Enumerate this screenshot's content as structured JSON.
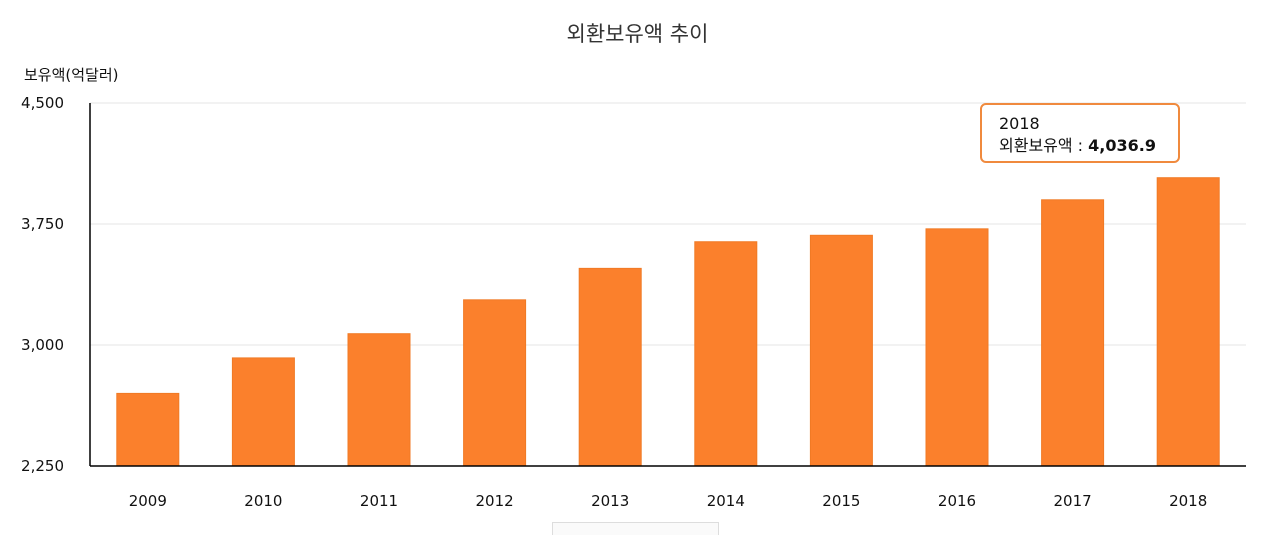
{
  "chart_data": {
    "type": "bar",
    "title": "외환보유액 추이",
    "ylabel": "보유액(억달러)",
    "xlabel": "",
    "categories": [
      "2009",
      "2010",
      "2011",
      "2012",
      "2013",
      "2014",
      "2015",
      "2016",
      "2017",
      "2018"
    ],
    "values": [
      2700,
      2920,
      3070,
      3280,
      3475,
      3640,
      3680,
      3720,
      3900,
      4036.9
    ],
    "ylim": [
      2250,
      4500
    ],
    "yticks": [
      "2,250",
      "3,000",
      "3,750",
      "4,500"
    ],
    "ytick_values": [
      2250,
      3000,
      3750,
      4500
    ],
    "bar_color": "#fb802c",
    "grid": true,
    "tooltip": {
      "category": "2018",
      "label": "외환보유액 : ",
      "value": "4,036.9",
      "border_color": "#f08a3e"
    }
  }
}
